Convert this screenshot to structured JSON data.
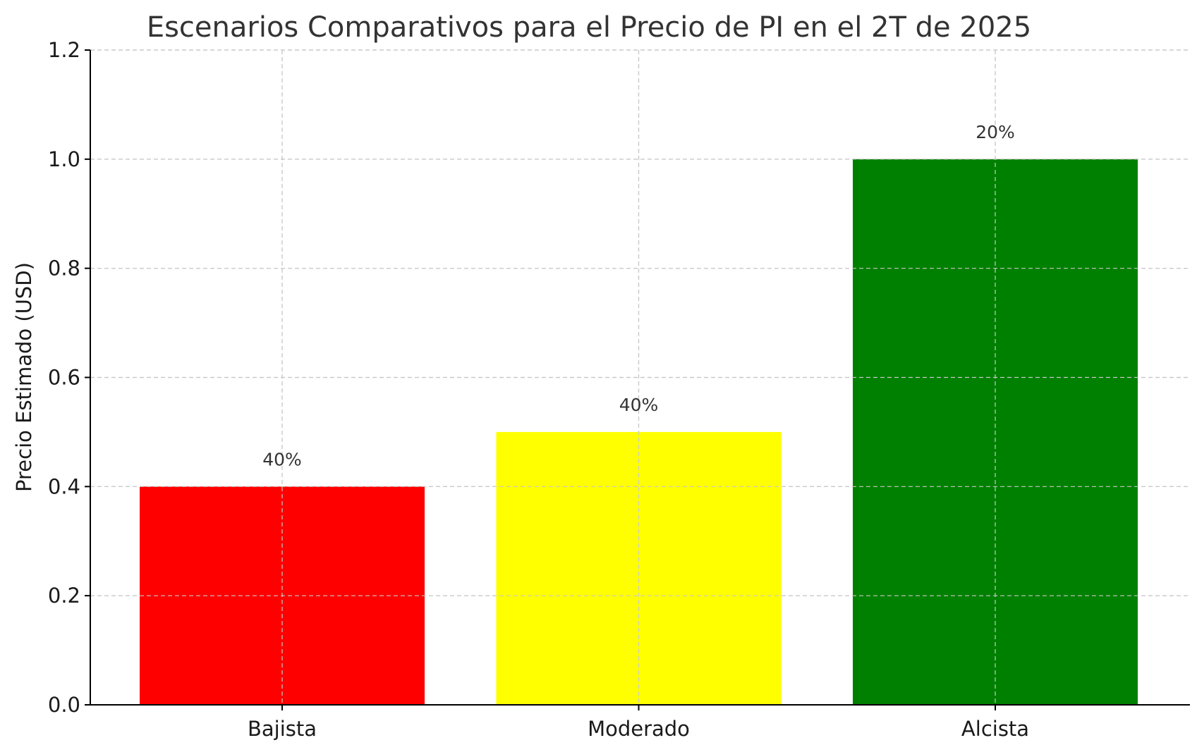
{
  "chart_data": {
    "type": "bar",
    "title": "Escenarios Comparativos para el Precio de PI en el 2T de 2025",
    "xlabel": "",
    "ylabel": "Precio Estimado (USD)",
    "categories": [
      "Bajista",
      "Moderado",
      "Alcista"
    ],
    "values": [
      0.4,
      0.5,
      1.0
    ],
    "bar_labels": [
      "40%",
      "40%",
      "20%"
    ],
    "colors": [
      "#ff0000",
      "#ffff00",
      "#008000"
    ],
    "ylim": [
      0,
      1.2
    ],
    "yticks": [
      "0.0",
      "0.2",
      "0.4",
      "0.6",
      "0.8",
      "1.0",
      "1.2"
    ],
    "ytick_values": [
      0,
      0.2,
      0.4,
      0.6,
      0.8,
      1.0,
      1.2
    ],
    "grid": true
  }
}
